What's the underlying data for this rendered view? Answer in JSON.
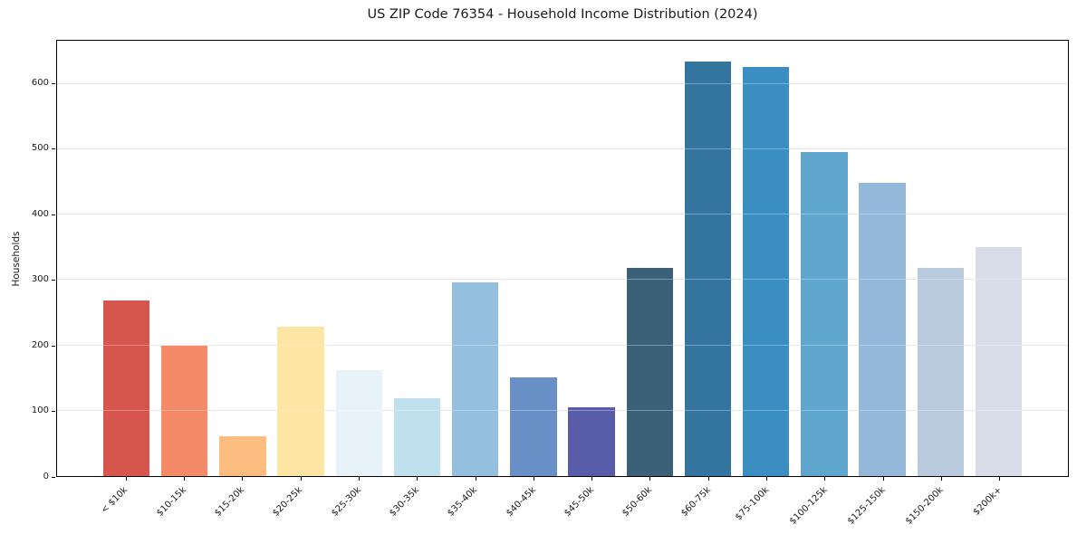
{
  "title": "US ZIP Code 76354 - Household Income Distribution (2024)",
  "colors": {
    "background": "#ffffff",
    "text": "#1a1a1a",
    "spine": "#000000",
    "grid": "#e6e8e9"
  },
  "chart_data": {
    "type": "bar",
    "title": "US ZIP Code 76354 - Household Income Distribution (2024)",
    "xlabel": "",
    "ylabel": "Households",
    "categories": [
      "< $10k",
      "$10-15k",
      "$15-20k",
      "$20-25k",
      "$25-30k",
      "$30-35k",
      "$35-40k",
      "$40-45k",
      "$45-50k",
      "$50-60k",
      "$60-75k",
      "$75-100k",
      "$100-125k",
      "$125-150k",
      "$150-200k",
      "$200k+"
    ],
    "values": [
      268,
      199,
      61,
      228,
      162,
      119,
      296,
      151,
      105,
      319,
      634,
      626,
      496,
      449,
      318,
      351
    ],
    "bar_colors": [
      "#d6564e",
      "#f58a69",
      "#fbbd80",
      "#fde5a4",
      "#e7f3f8",
      "#bfe1ed",
      "#94bfde",
      "#6890c6",
      "#595da9",
      "#3a6177",
      "#34759f",
      "#3a8ec1",
      "#5fa6cd",
      "#93b8da",
      "#b9cade",
      "#d8dbe8"
    ],
    "ylim": [
      0,
      666
    ],
    "yticks": [
      0,
      100,
      200,
      300,
      400,
      500,
      600
    ],
    "ytick_labels": [
      "0",
      "100",
      "200",
      "300",
      "400",
      "500",
      "600"
    ],
    "grid": "horizontal-y-only",
    "legend": "none",
    "x_tick_rotation_deg": 45
  }
}
